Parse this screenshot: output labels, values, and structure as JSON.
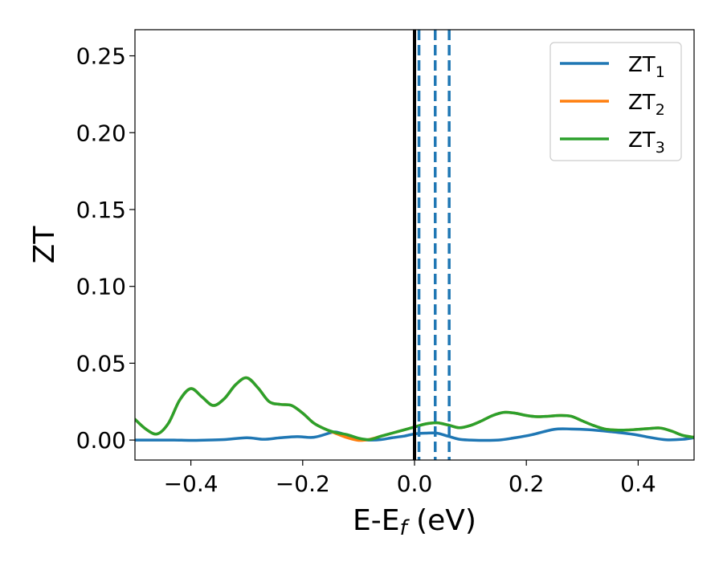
{
  "chart_data": {
    "type": "line",
    "xlabel": "E-E",
    "xlabel_sub": "f",
    "xlabel_unit": " (eV)",
    "ylabel": "ZT",
    "xlim": [
      -0.5,
      0.5
    ],
    "ylim": [
      -0.013,
      0.267
    ],
    "x_ticks": [
      -0.4,
      -0.2,
      0.0,
      0.2,
      0.4
    ],
    "x_tick_labels": [
      "−0.4",
      "−0.2",
      "0.0",
      "0.2",
      "0.4"
    ],
    "y_ticks": [
      0.0,
      0.05,
      0.1,
      0.15,
      0.2,
      0.25
    ],
    "y_tick_labels": [
      "0.00",
      "0.05",
      "0.10",
      "0.15",
      "0.20",
      "0.25"
    ],
    "grid": false,
    "legend_position": "top-right",
    "series": [
      {
        "name": "ZT",
        "sub": "1",
        "color": "#1f77b4",
        "x": [
          -0.5,
          -0.46,
          -0.43,
          -0.4,
          -0.37,
          -0.34,
          -0.3,
          -0.27,
          -0.24,
          -0.21,
          -0.18,
          -0.15,
          -0.14,
          -0.12,
          -0.1,
          -0.08,
          -0.06,
          -0.04,
          -0.02,
          0.0,
          0.02,
          0.04,
          0.06,
          0.08,
          0.1,
          0.12,
          0.15,
          0.18,
          0.21,
          0.25,
          0.28,
          0.31,
          0.35,
          0.39,
          0.42,
          0.45,
          0.48,
          0.5
        ],
        "y": [
          0.0,
          0.0,
          0.0,
          -0.0002,
          0.0,
          0.0003,
          0.0015,
          0.0005,
          0.0015,
          0.0022,
          0.0018,
          0.0048,
          0.0052,
          0.003,
          0.0005,
          0.0,
          0.0003,
          0.0015,
          0.0025,
          0.004,
          0.0045,
          0.0045,
          0.0025,
          0.0005,
          0.0,
          -0.0002,
          0.0,
          0.0015,
          0.0035,
          0.007,
          0.0072,
          0.0068,
          0.0055,
          0.0038,
          0.0018,
          0.0002,
          0.0005,
          0.0015
        ]
      },
      {
        "name": "ZT",
        "sub": "2",
        "color": "#ff7f0e",
        "x": [
          -0.5,
          -0.48,
          -0.46,
          -0.44,
          -0.42,
          -0.4,
          -0.38,
          -0.36,
          -0.34,
          -0.32,
          -0.3,
          -0.28,
          -0.26,
          -0.24,
          -0.22,
          -0.2,
          -0.18,
          -0.16,
          -0.14,
          -0.12,
          -0.1,
          -0.08,
          -0.06,
          -0.04,
          -0.02,
          0.0,
          0.02,
          0.04,
          0.06,
          0.08,
          0.1,
          0.12,
          0.14,
          0.16,
          0.18,
          0.2,
          0.22,
          0.24,
          0.26,
          0.28,
          0.3,
          0.32,
          0.34,
          0.36,
          0.38,
          0.4,
          0.42,
          0.44,
          0.46,
          0.48,
          0.5
        ],
        "y": [
          0.0135,
          0.007,
          0.004,
          0.011,
          0.026,
          0.0335,
          0.028,
          0.0225,
          0.027,
          0.036,
          0.0405,
          0.034,
          0.025,
          0.0232,
          0.0225,
          0.0175,
          0.011,
          0.0072,
          0.0042,
          0.0015,
          -0.0002,
          0.0005,
          0.0025,
          0.0045,
          0.0065,
          0.0085,
          0.0105,
          0.0112,
          0.0098,
          0.008,
          0.0095,
          0.0125,
          0.016,
          0.018,
          0.0175,
          0.016,
          0.0152,
          0.0155,
          0.016,
          0.0155,
          0.0125,
          0.0095,
          0.0072,
          0.0065,
          0.0065,
          0.007,
          0.0075,
          0.0078,
          0.0058,
          0.003,
          0.0018
        ]
      },
      {
        "name": "ZT",
        "sub": "3",
        "color": "#2ca02c",
        "x": [
          -0.5,
          -0.48,
          -0.46,
          -0.44,
          -0.42,
          -0.4,
          -0.38,
          -0.36,
          -0.34,
          -0.32,
          -0.3,
          -0.28,
          -0.26,
          -0.24,
          -0.22,
          -0.2,
          -0.18,
          -0.16,
          -0.14,
          -0.12,
          -0.1,
          -0.08,
          -0.06,
          -0.04,
          -0.02,
          0.0,
          0.02,
          0.04,
          0.06,
          0.08,
          0.1,
          0.12,
          0.14,
          0.16,
          0.18,
          0.2,
          0.22,
          0.24,
          0.26,
          0.28,
          0.3,
          0.32,
          0.34,
          0.36,
          0.38,
          0.4,
          0.42,
          0.44,
          0.46,
          0.48,
          0.5
        ],
        "y": [
          0.0135,
          0.007,
          0.004,
          0.011,
          0.026,
          0.0335,
          0.028,
          0.0225,
          0.027,
          0.036,
          0.0405,
          0.034,
          0.025,
          0.0232,
          0.0225,
          0.0175,
          0.011,
          0.0072,
          0.0048,
          0.0035,
          0.0012,
          0.0003,
          0.0025,
          0.0045,
          0.0065,
          0.0085,
          0.0105,
          0.0112,
          0.0098,
          0.008,
          0.0095,
          0.0125,
          0.016,
          0.018,
          0.0175,
          0.016,
          0.0152,
          0.0155,
          0.016,
          0.0155,
          0.0125,
          0.0095,
          0.0072,
          0.0065,
          0.0065,
          0.007,
          0.0075,
          0.0078,
          0.0058,
          0.003,
          0.0018
        ]
      }
    ],
    "vertical_lines": [
      {
        "x": 0.0,
        "color": "#000000",
        "style": "solid"
      },
      {
        "x": 0.008,
        "color": "#1f77b4",
        "style": "dashed"
      },
      {
        "x": 0.037,
        "color": "#1f77b4",
        "style": "dashed"
      },
      {
        "x": 0.062,
        "color": "#1f77b4",
        "style": "dashed"
      }
    ]
  }
}
